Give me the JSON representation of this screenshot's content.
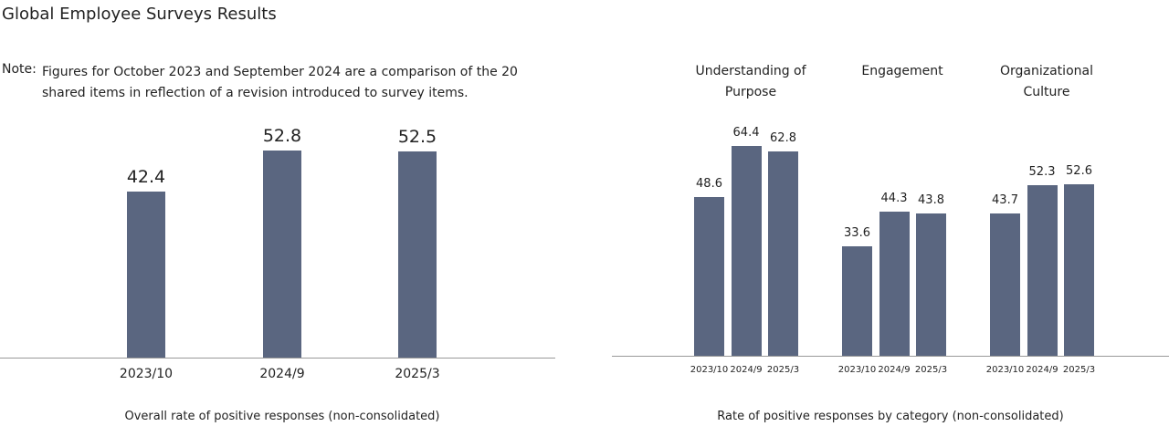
{
  "title": "Global Employee Surveys Results",
  "note_label": "Note:",
  "note": "Figures for October 2023 and September 2024 are a comparison of the 20 shared items in reflection of a revision introduced to survey items.",
  "chart_data": [
    {
      "type": "bar",
      "color": "#5a6680",
      "categories": [
        "2023/10",
        "2024/9",
        "2025/3"
      ],
      "values": [
        42.4,
        52.8,
        52.5
      ],
      "caption": "Overall rate of positive responses (non-consolidated)"
    },
    {
      "type": "grouped_bar",
      "color": "#5a6680",
      "groups": [
        {
          "name": "Understanding of Purpose",
          "categories": [
            "2023/10",
            "2024/9",
            "2025/3"
          ],
          "values": [
            48.6,
            64.4,
            62.8
          ]
        },
        {
          "name": "Engagement",
          "categories": [
            "2023/10",
            "2024/9",
            "2025/3"
          ],
          "values": [
            33.6,
            44.3,
            43.8
          ]
        },
        {
          "name": "Organizational Culture",
          "categories": [
            "2023/10",
            "2024/9",
            "2025/3"
          ],
          "values": [
            43.7,
            52.3,
            52.6
          ]
        }
      ],
      "caption": "Rate of positive responses by category (non-consolidated)"
    }
  ]
}
